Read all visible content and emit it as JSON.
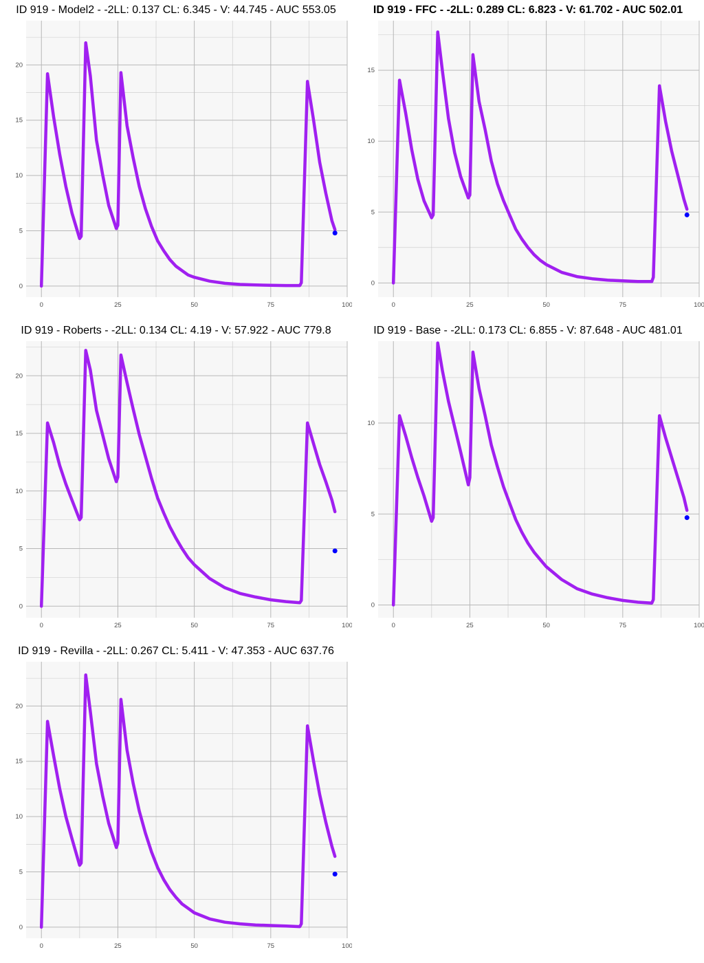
{
  "chart_data": [
    {
      "type": "line",
      "title": "ID 919 - Model2 - -2LL: 0.137 CL: 6.345 - V: 44.745 - AUC 553.05",
      "title_bold": false,
      "xlim": [
        -5,
        100
      ],
      "ylim": [
        -1,
        24
      ],
      "x_ticks": [
        0,
        25,
        50,
        75,
        100
      ],
      "x_tick_labels": [
        "0",
        "25",
        "50",
        "75",
        "100"
      ],
      "y_ticks": [
        0,
        5,
        10,
        15,
        20
      ],
      "y_tick_labels": [
        "0",
        "5",
        "10",
        "15",
        "20"
      ],
      "grid": true,
      "series": [
        {
          "color": "#a020f0",
          "x": [
            0,
            2,
            4,
            6,
            8,
            10,
            12.5,
            13,
            14.5,
            16,
            18,
            20,
            22,
            24.5,
            25,
            26,
            28,
            30,
            32,
            34,
            36,
            38,
            40,
            42,
            44,
            46,
            48,
            50,
            55,
            60,
            65,
            70,
            75,
            80,
            84.5,
            85,
            87,
            89,
            91,
            93,
            95,
            96
          ],
          "y": [
            0,
            19.2,
            15.3,
            11.9,
            9.0,
            6.6,
            4.3,
            4.5,
            22.0,
            19.0,
            13.2,
            10.1,
            7.3,
            5.2,
            5.5,
            19.3,
            14.5,
            11.6,
            9.0,
            7.0,
            5.4,
            4.1,
            3.2,
            2.4,
            1.8,
            1.4,
            1.0,
            0.8,
            0.45,
            0.25,
            0.15,
            0.1,
            0.07,
            0.05,
            0.05,
            0.3,
            18.5,
            15.0,
            11.2,
            8.4,
            5.9,
            5.1
          ]
        }
      ],
      "points": [
        {
          "x": 96,
          "y": 4.8,
          "color": "#0000ff"
        }
      ]
    },
    {
      "type": "line",
      "title": "ID 919 - FFC - -2LL: 0.289 CL: 6.823 - V: 61.702 - AUC 502.01",
      "title_bold": true,
      "xlim": [
        -5,
        100
      ],
      "ylim": [
        -1,
        18.5
      ],
      "x_ticks": [
        0,
        25,
        50,
        75,
        100
      ],
      "x_tick_labels": [
        "0",
        "25",
        "50",
        "75",
        "100"
      ],
      "y_ticks": [
        0,
        5,
        10,
        15
      ],
      "y_tick_labels": [
        "0",
        "5",
        "10",
        "15"
      ],
      "grid": true,
      "series": [
        {
          "color": "#a020f0",
          "x": [
            0,
            2,
            4,
            6,
            8,
            10,
            12.5,
            13,
            14.5,
            16,
            18,
            20,
            22,
            24.5,
            25,
            26,
            28,
            30,
            32,
            34,
            36,
            38,
            40,
            42,
            44,
            46,
            48,
            50,
            55,
            60,
            65,
            70,
            75,
            80,
            84.5,
            85,
            87,
            89,
            91,
            93,
            95,
            96
          ],
          "y": [
            0,
            14.3,
            12.0,
            9.4,
            7.3,
            5.8,
            4.6,
            4.8,
            17.7,
            15.0,
            11.6,
            9.2,
            7.5,
            6.0,
            6.2,
            16.1,
            12.8,
            10.8,
            8.6,
            7.0,
            5.8,
            4.8,
            3.8,
            3.1,
            2.5,
            2.0,
            1.6,
            1.3,
            0.75,
            0.45,
            0.3,
            0.2,
            0.15,
            0.1,
            0.1,
            0.4,
            13.9,
            11.4,
            9.3,
            7.6,
            5.9,
            5.2
          ]
        }
      ],
      "points": [
        {
          "x": 96,
          "y": 4.8,
          "color": "#0000ff"
        }
      ]
    },
    {
      "type": "line",
      "title": "ID 919 - Roberts - -2LL: 0.134 CL: 4.19 - V: 57.922 - AUC 779.8",
      "title_bold": false,
      "xlim": [
        -5,
        100
      ],
      "ylim": [
        -1,
        23
      ],
      "x_ticks": [
        0,
        25,
        50,
        75,
        100
      ],
      "x_tick_labels": [
        "0",
        "25",
        "50",
        "75",
        "100"
      ],
      "y_ticks": [
        0,
        5,
        10,
        15,
        20
      ],
      "y_tick_labels": [
        "0",
        "5",
        "10",
        "15",
        "20"
      ],
      "grid": true,
      "series": [
        {
          "color": "#a020f0",
          "x": [
            0,
            2,
            4,
            6,
            8,
            10,
            12.5,
            13,
            14.5,
            16,
            18,
            20,
            22,
            24.5,
            25,
            26,
            28,
            30,
            32,
            34,
            36,
            38,
            40,
            42,
            44,
            46,
            48,
            50,
            55,
            60,
            65,
            70,
            75,
            80,
            84.5,
            85,
            87,
            89,
            91,
            93,
            95,
            96
          ],
          "y": [
            0,
            15.9,
            14.2,
            12.2,
            10.6,
            9.2,
            7.5,
            7.7,
            22.2,
            20.5,
            17.0,
            14.9,
            12.8,
            10.8,
            11.2,
            21.8,
            19.4,
            17.1,
            14.9,
            13.0,
            11.1,
            9.4,
            8.1,
            6.9,
            5.9,
            5.0,
            4.2,
            3.6,
            2.4,
            1.6,
            1.1,
            0.8,
            0.55,
            0.4,
            0.3,
            0.5,
            15.9,
            14.1,
            12.3,
            10.8,
            9.2,
            8.2
          ]
        }
      ],
      "points": [
        {
          "x": 96,
          "y": 4.8,
          "color": "#0000ff"
        }
      ]
    },
    {
      "type": "line",
      "title": "ID 919 - Base - -2LL: 0.173 CL: 6.855 - V: 87.648 - AUC 481.01",
      "title_bold": false,
      "xlim": [
        -5,
        100
      ],
      "ylim": [
        -0.7,
        14.5
      ],
      "x_ticks": [
        0,
        25,
        50,
        75,
        100
      ],
      "x_tick_labels": [
        "0",
        "25",
        "50",
        "75",
        "100"
      ],
      "y_ticks": [
        0,
        5,
        10
      ],
      "y_tick_labels": [
        "0",
        "5",
        "10"
      ],
      "grid": true,
      "series": [
        {
          "color": "#a020f0",
          "x": [
            0,
            2,
            4,
            6,
            8,
            10,
            12.5,
            13,
            14.5,
            16,
            18,
            20,
            22,
            24.5,
            25,
            26,
            28,
            30,
            32,
            34,
            36,
            38,
            40,
            42,
            44,
            46,
            48,
            50,
            55,
            60,
            65,
            70,
            75,
            80,
            84.5,
            85,
            87,
            89,
            91,
            93,
            95,
            96
          ],
          "y": [
            0,
            10.4,
            9.3,
            8.1,
            7.0,
            6.0,
            4.6,
            4.8,
            14.4,
            12.9,
            11.2,
            9.8,
            8.4,
            6.6,
            7.0,
            13.9,
            11.9,
            10.4,
            8.8,
            7.6,
            6.5,
            5.6,
            4.7,
            4.0,
            3.4,
            2.9,
            2.5,
            2.1,
            1.4,
            0.9,
            0.6,
            0.4,
            0.25,
            0.15,
            0.1,
            0.3,
            10.4,
            9.2,
            8.1,
            7.0,
            5.9,
            5.2
          ]
        }
      ],
      "points": [
        {
          "x": 96,
          "y": 4.8,
          "color": "#0000ff"
        }
      ]
    },
    {
      "type": "line",
      "title": "ID 919 - Revilla - -2LL: 0.267 CL: 5.411 - V: 47.353 - AUC 637.76",
      "title_bold": false,
      "xlim": [
        -5,
        100
      ],
      "ylim": [
        -1,
        24
      ],
      "x_ticks": [
        0,
        25,
        50,
        75,
        100
      ],
      "x_tick_labels": [
        "0",
        "25",
        "50",
        "75",
        "100"
      ],
      "y_ticks": [
        0,
        5,
        10,
        15,
        20
      ],
      "y_tick_labels": [
        "0",
        "5",
        "10",
        "15",
        "20"
      ],
      "grid": true,
      "series": [
        {
          "color": "#a020f0",
          "x": [
            0,
            2,
            4,
            6,
            8,
            10,
            12.5,
            13,
            14.5,
            16,
            18,
            20,
            22,
            24.5,
            25,
            26,
            28,
            30,
            32,
            34,
            36,
            38,
            40,
            42,
            44,
            46,
            48,
            50,
            55,
            60,
            65,
            70,
            75,
            80,
            84.5,
            85,
            87,
            89,
            91,
            93,
            95,
            96
          ],
          "y": [
            0,
            18.6,
            15.5,
            12.5,
            10.0,
            8.0,
            5.6,
            5.8,
            22.8,
            19.5,
            14.8,
            11.9,
            9.4,
            7.2,
            7.6,
            20.6,
            16.0,
            13.0,
            10.5,
            8.5,
            6.8,
            5.4,
            4.3,
            3.4,
            2.7,
            2.1,
            1.7,
            1.3,
            0.75,
            0.45,
            0.3,
            0.2,
            0.15,
            0.1,
            0.05,
            0.3,
            18.2,
            15.0,
            12.0,
            9.5,
            7.3,
            6.4
          ]
        }
      ],
      "points": [
        {
          "x": 96,
          "y": 4.8,
          "color": "#0000ff"
        }
      ]
    }
  ]
}
